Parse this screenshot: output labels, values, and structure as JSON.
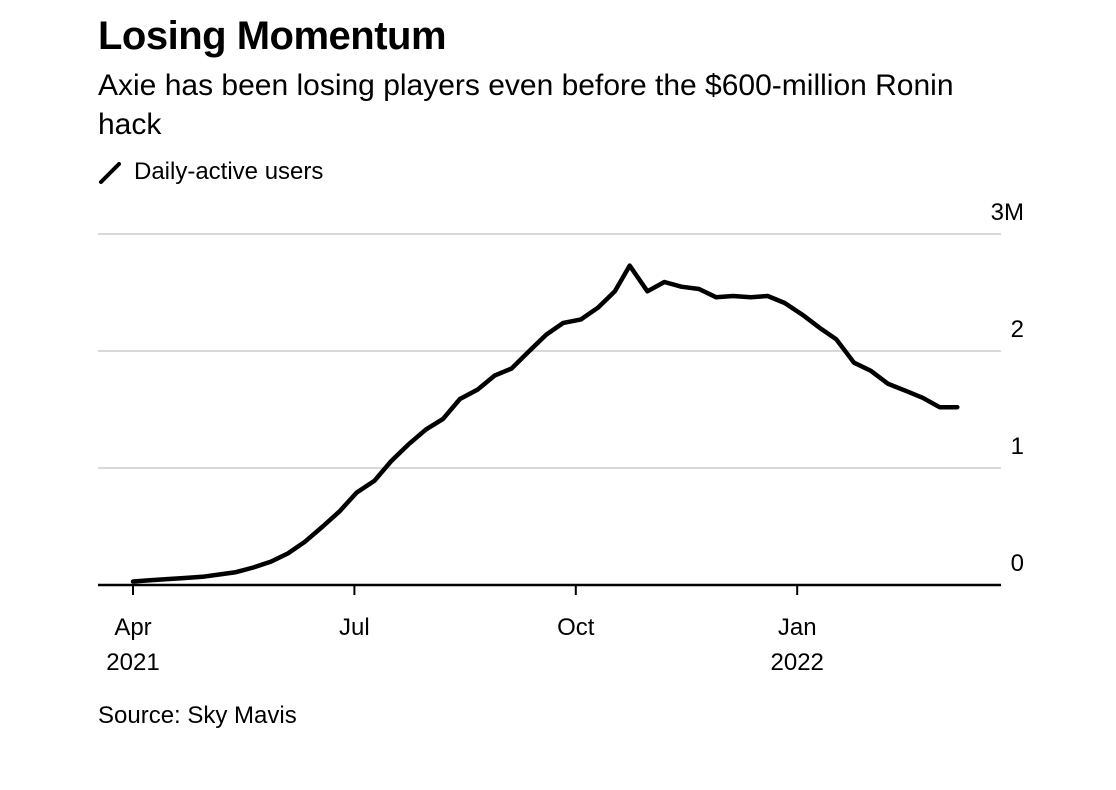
{
  "header": {
    "title": "Losing Momentum",
    "subtitle": "Axie has been losing players even before the $600-million Ronin hack"
  },
  "footer": {
    "source": "Source: Sky Mavis"
  },
  "colors": {
    "line": "#000000",
    "grid": "#d9d9d9",
    "axis": "#000000"
  },
  "chart_data": {
    "type": "line",
    "title": "Losing Momentum",
    "subtitle": "Axie has been losing players even before the $600-million Ronin hack",
    "xlabel": "",
    "ylabel": "",
    "ylim": [
      0,
      3
    ],
    "y_unit": "millions",
    "grid": true,
    "legend": "top-left",
    "y_ticks": [
      {
        "value": 3,
        "label": "3M"
      },
      {
        "value": 2,
        "label": "2"
      },
      {
        "value": 1,
        "label": "1"
      },
      {
        "value": 0,
        "label": "0"
      }
    ],
    "x_ticks": [
      {
        "month": 0,
        "label": "Apr",
        "sublabel": "2021"
      },
      {
        "month": 3,
        "label": "Jul",
        "sublabel": ""
      },
      {
        "month": 6,
        "label": "Oct",
        "sublabel": ""
      },
      {
        "month": 9,
        "label": "Jan",
        "sublabel": "2022"
      }
    ],
    "x_unit": "months since Apr 2021",
    "series": [
      {
        "name": "Daily-active users",
        "points": [
          [
            0.0,
            0.03
          ],
          [
            0.23,
            0.04
          ],
          [
            0.46,
            0.05
          ],
          [
            0.7,
            0.06
          ],
          [
            0.94,
            0.07
          ],
          [
            1.17,
            0.09
          ],
          [
            1.4,
            0.11
          ],
          [
            1.63,
            0.15
          ],
          [
            1.87,
            0.2
          ],
          [
            2.1,
            0.27
          ],
          [
            2.33,
            0.37
          ],
          [
            2.57,
            0.5
          ],
          [
            2.8,
            0.63
          ],
          [
            3.03,
            0.79
          ],
          [
            3.27,
            0.89
          ],
          [
            3.5,
            1.06
          ],
          [
            3.73,
            1.2
          ],
          [
            3.97,
            1.33
          ],
          [
            4.2,
            1.42
          ],
          [
            4.43,
            1.59
          ],
          [
            4.67,
            1.67
          ],
          [
            4.9,
            1.79
          ],
          [
            5.13,
            1.85
          ],
          [
            5.37,
            2.0
          ],
          [
            5.6,
            2.14
          ],
          [
            5.83,
            2.24
          ],
          [
            6.07,
            2.27
          ],
          [
            6.3,
            2.37
          ],
          [
            6.53,
            2.51
          ],
          [
            6.73,
            2.73
          ],
          [
            6.97,
            2.51
          ],
          [
            7.2,
            2.59
          ],
          [
            7.43,
            2.55
          ],
          [
            7.67,
            2.53
          ],
          [
            7.9,
            2.46
          ],
          [
            8.13,
            2.47
          ],
          [
            8.37,
            2.46
          ],
          [
            8.6,
            2.47
          ],
          [
            8.83,
            2.41
          ],
          [
            9.07,
            2.31
          ],
          [
            9.3,
            2.2
          ],
          [
            9.53,
            2.1
          ],
          [
            9.77,
            1.9
          ],
          [
            10.0,
            1.83
          ],
          [
            10.23,
            1.72
          ],
          [
            10.47,
            1.66
          ],
          [
            10.7,
            1.6
          ],
          [
            10.93,
            1.52
          ],
          [
            11.17,
            1.52
          ]
        ]
      }
    ]
  }
}
